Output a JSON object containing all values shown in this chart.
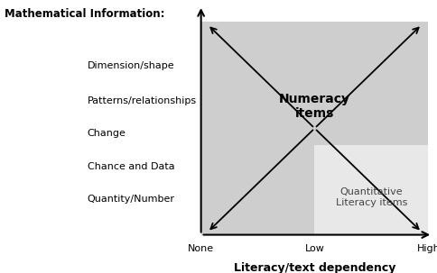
{
  "title_left": "Mathematical Information:",
  "xlabel": "Literacy/text dependency",
  "y_labels": [
    "Dimension/shape",
    "Patterns/relationships",
    "Change",
    "Chance and Data",
    "Quantity/Number"
  ],
  "x_ticks": [
    "None",
    "Low",
    "High"
  ],
  "numeracy_label": "Numeracy\nitems",
  "ql_label": "Quantitative\nLiteracy items",
  "bg_color": "#cecece",
  "ql_box_color": "#e8e8e8",
  "fig_width": 4.84,
  "fig_height": 3.03,
  "dpi": 100,
  "title_fontsize": 8.5,
  "label_fontsize": 8,
  "tick_fontsize": 8,
  "xlabel_fontsize": 9,
  "numeracy_fontsize": 10,
  "ql_fontsize": 8
}
